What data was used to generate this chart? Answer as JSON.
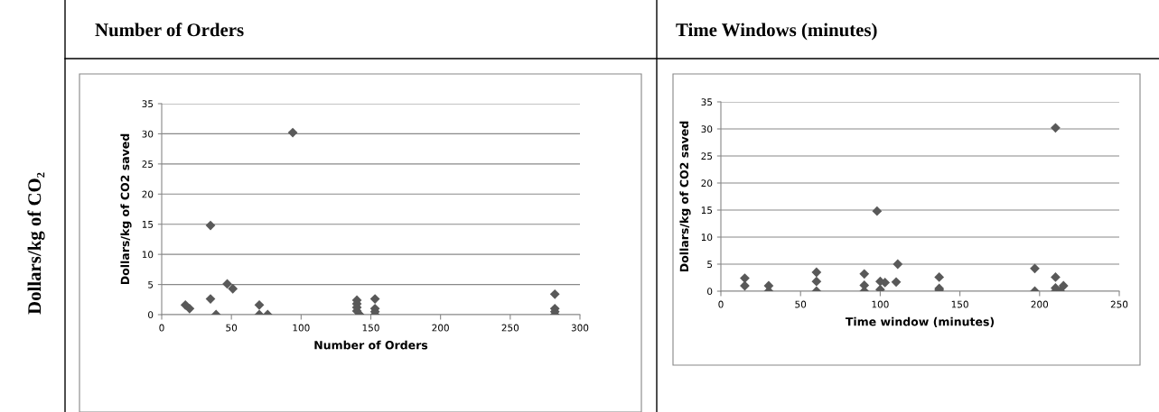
{
  "chart_data": [
    {
      "type": "scatter",
      "title": "Number of Orders",
      "xlabel": "Number of Orders",
      "ylabel": "Dollars/kg of CO2 saved",
      "annotations": [
        "Dollars/kg of CO₂"
      ],
      "series": [
        {
          "color": "#595959",
          "x": [
            17,
            20,
            35,
            35,
            39,
            47,
            51,
            70,
            70,
            76,
            94,
            140,
            140,
            140,
            140,
            142,
            153,
            153,
            153,
            153,
            282,
            282,
            282,
            282
          ],
          "values": [
            1.6,
            1.0,
            2.6,
            14.8,
            0,
            5.1,
            4.3,
            1.6,
            0,
            0,
            30.2,
            2.4,
            1.8,
            1.2,
            0.6,
            0,
            2.6,
            1.0,
            0.5,
            0,
            3.4,
            1.0,
            0.5,
            0
          ]
        }
      ],
      "xlim": [
        0,
        300
      ],
      "xticks": [
        0,
        50,
        100,
        150,
        200,
        250,
        300
      ],
      "ylim": [
        0,
        35
      ],
      "yticks": [
        0,
        5,
        10,
        15,
        20,
        25,
        30,
        35
      ],
      "grid": "y",
      "marker": "diamond"
    },
    {
      "type": "scatter",
      "title": "Time Windows (minutes)",
      "xlabel": "Time window (minutes)",
      "ylabel": "Dollars/kg of CO2 saved",
      "series": [
        {
          "color": "#595959",
          "x": [
            15,
            15,
            30,
            30,
            60,
            60,
            60,
            90,
            90,
            90,
            98,
            100,
            100,
            103,
            110,
            111,
            137,
            137,
            137,
            197,
            197,
            210,
            210,
            210,
            210,
            213,
            215
          ],
          "values": [
            2.4,
            1.0,
            1.0,
            0,
            3.5,
            1.8,
            0,
            3.2,
            1.1,
            0,
            14.8,
            1.8,
            0.3,
            1.6,
            1.7,
            5.0,
            2.6,
            0.5,
            0.2,
            4.2,
            0,
            30.2,
            2.6,
            0.6,
            0,
            0,
            1.0
          ]
        }
      ],
      "xlim": [
        0,
        250
      ],
      "xticks": [
        0,
        50,
        100,
        150,
        200,
        250
      ],
      "ylim": [
        0,
        35
      ],
      "yticks": [
        0,
        5,
        10,
        15,
        20,
        25,
        30,
        35
      ],
      "grid": "y",
      "marker": "diamond"
    }
  ]
}
